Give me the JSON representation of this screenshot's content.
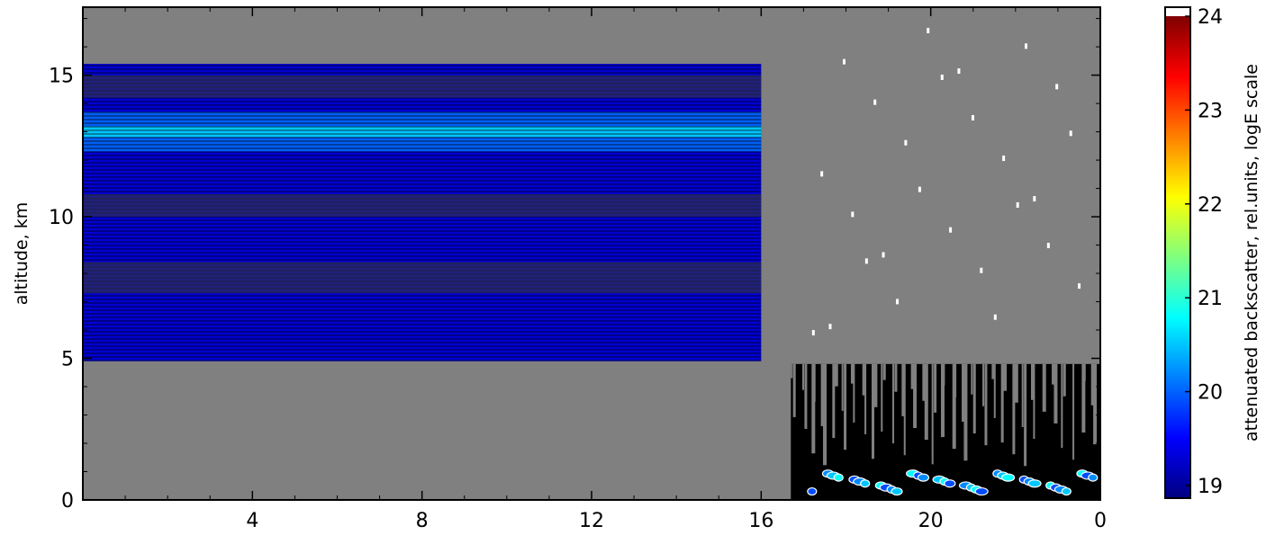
{
  "chart_data": {
    "type": "heatmap",
    "title": "",
    "xlabel": "",
    "ylabel": "altitude, km",
    "x_ticks": [
      "4",
      "8",
      "12",
      "16",
      "20",
      "0"
    ],
    "xlim_hours": [
      0,
      24
    ],
    "y_ticks": [
      0,
      5,
      10,
      15
    ],
    "ylim": [
      0,
      17.4
    ],
    "colorbar": {
      "label": "attenuated backscatter, rel.units, logE scale",
      "ticks": [
        19,
        20,
        21,
        22,
        23,
        24
      ],
      "range": [
        19,
        24
      ],
      "colormap": "jet"
    },
    "background_color": "#808080",
    "layers": [
      {
        "name": "upper cloud band",
        "x": [
          0,
          16
        ],
        "y": [
          4.9,
          15.4
        ],
        "dominant_value": 19.4,
        "peak_value": 20.8,
        "peak_altitude": 13.0
      },
      {
        "name": "boundary layer",
        "x": [
          16.7,
          24
        ],
        "y": [
          0,
          4.8
        ],
        "dominant_value": 19.0
      },
      {
        "name": "low cloud spots",
        "x": [
          17.2,
          24
        ],
        "y": [
          0.3,
          1.0
        ],
        "dominant_value": 20.0
      }
    ],
    "grid": false
  }
}
